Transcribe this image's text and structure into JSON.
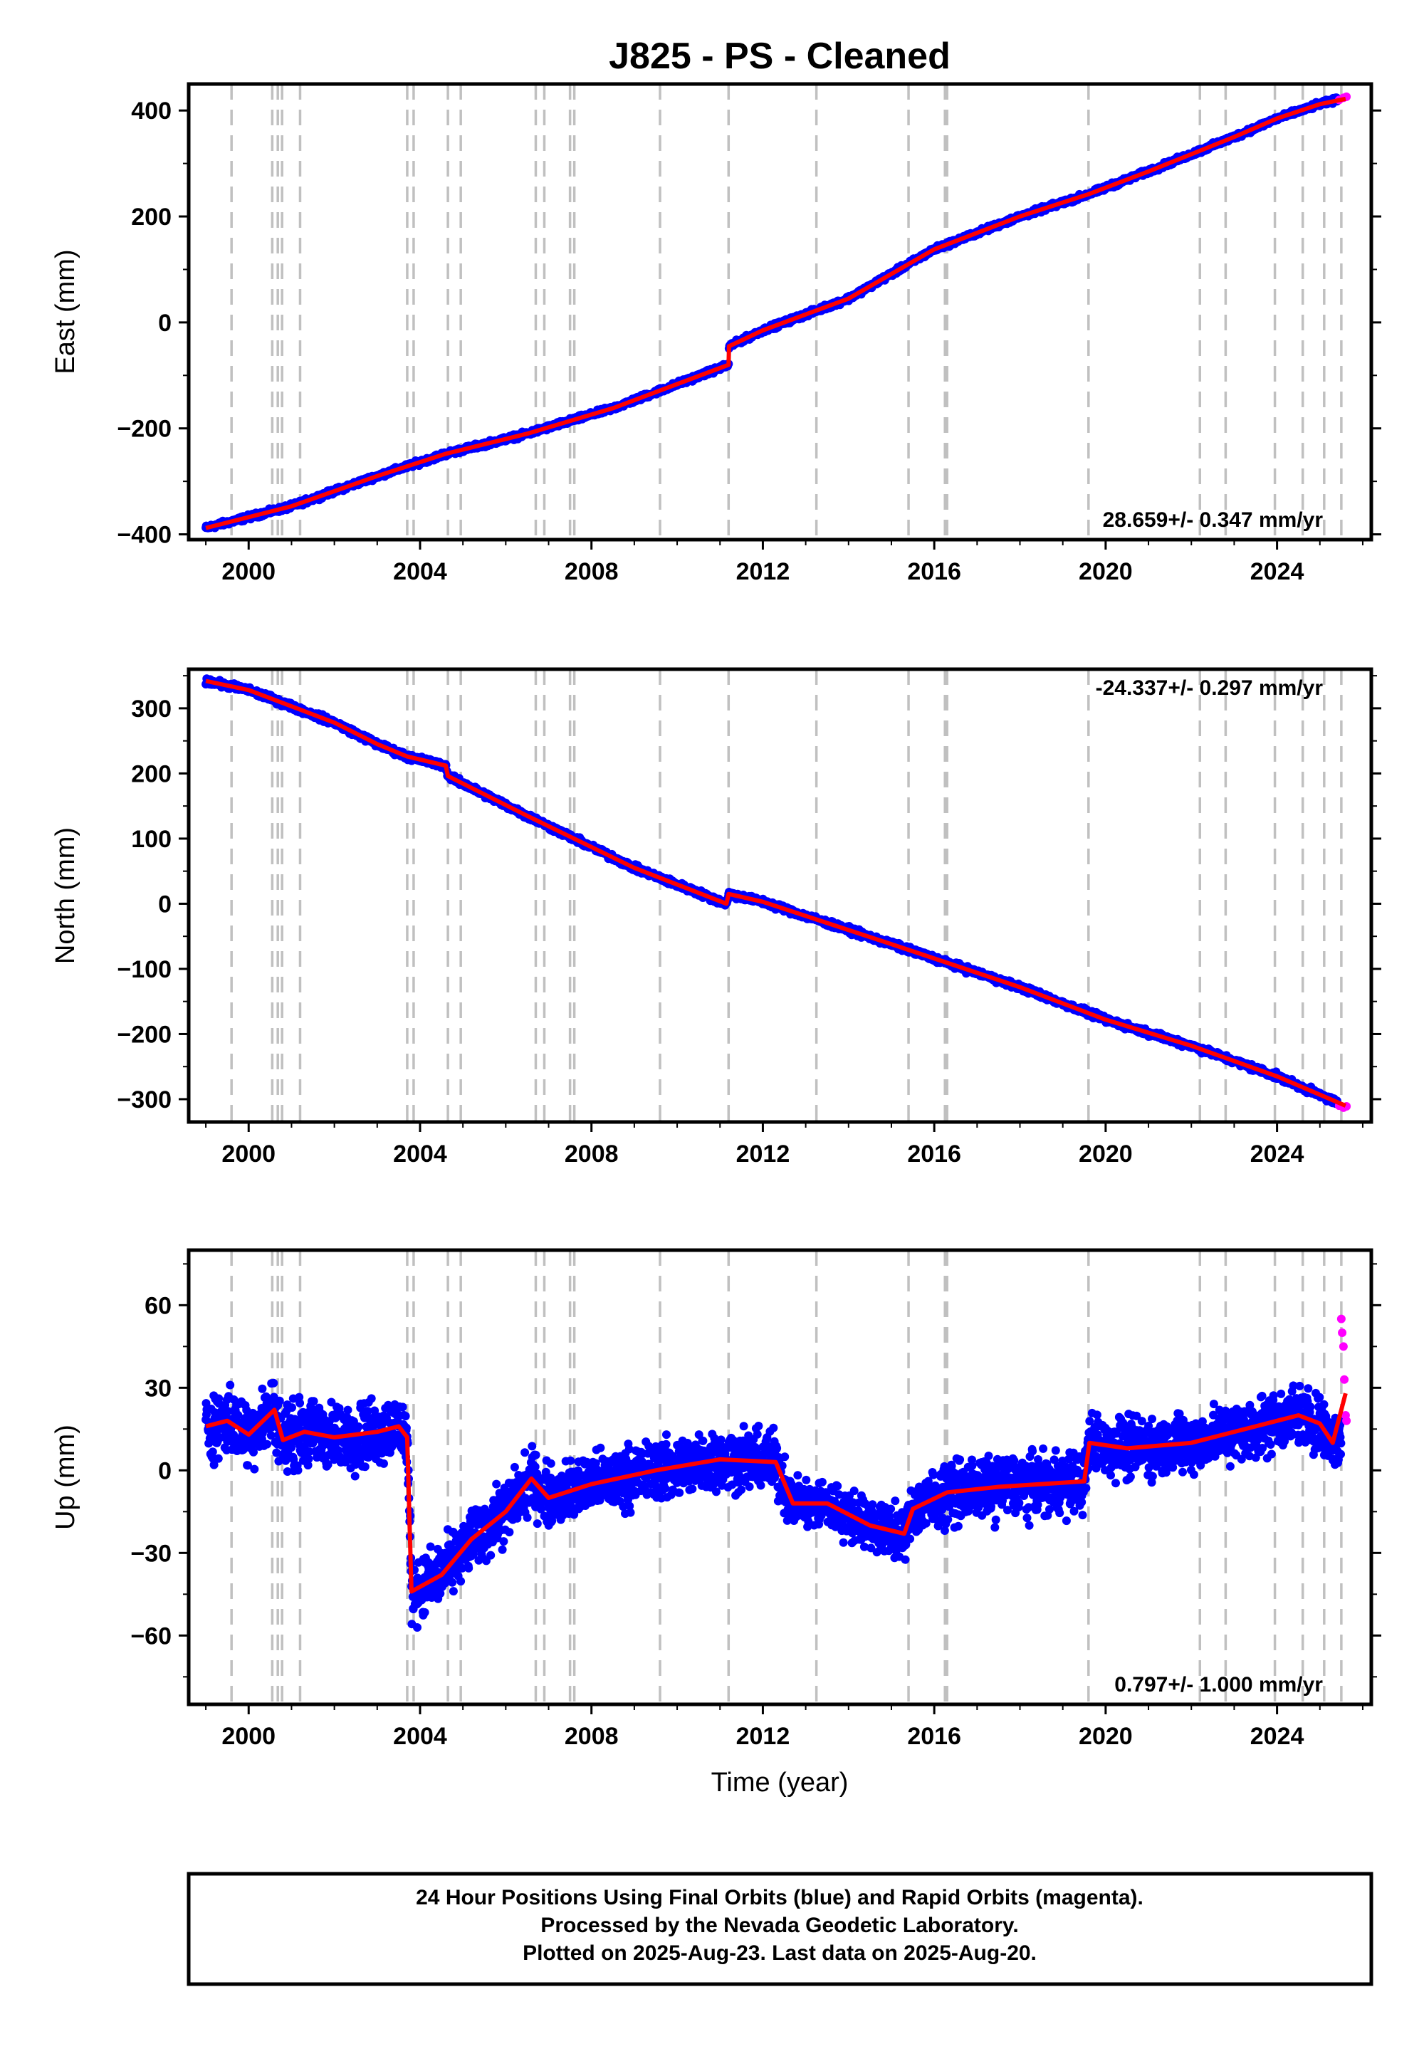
{
  "title": "J825  - PS - Cleaned",
  "colors": {
    "final_orbits": "#0000ff",
    "rapid_orbits": "#ff00ff",
    "trend": "#ff0000",
    "event_lines": "#c0c0c0",
    "frame": "#000000"
  },
  "event_lines_years": [
    1999.6,
    2000.55,
    2000.68,
    2000.78,
    2001.2,
    2003.7,
    2003.85,
    2004.65,
    2004.95,
    2006.7,
    2006.9,
    2007.5,
    2007.6,
    2009.6,
    2011.2,
    2013.25,
    2015.4,
    2016.25,
    2016.3,
    2019.6,
    2022.2,
    2022.8,
    2023.95,
    2024.6,
    2025.1,
    2025.5
  ],
  "xaxis": {
    "label": "Time (year)",
    "range": [
      1998.6,
      2026.2
    ],
    "ticks": [
      2000,
      2004,
      2008,
      2012,
      2016,
      2020,
      2024
    ]
  },
  "footer": {
    "line1": "24 Hour Positions Using Final Orbits (blue) and Rapid Orbits (magenta).",
    "line2": "Processed by the Nevada Geodetic Laboratory.",
    "line3": "Plotted on 2025-Aug-23. Last data on 2025-Aug-20."
  },
  "chart_data": [
    {
      "type": "scatter",
      "panel": "east",
      "ylabel": "East (mm)",
      "ylim": [
        -410,
        450
      ],
      "yticks": [
        -400,
        -200,
        0,
        200,
        400
      ],
      "rate_label": "28.659+/- 0.347 mm/yr",
      "rate_position": "bottom-right",
      "trend_x": [
        1999.0,
        2001.0,
        2003.0,
        2004.6,
        2006.5,
        2008.5,
        2011.2,
        2011.21,
        2012.0,
        2014.0,
        2016.0,
        2018.0,
        2019.6,
        2021.0,
        2023.0,
        2024.0,
        2025.0,
        2025.6
      ],
      "trend_y": [
        -388,
        -347,
        -290,
        -248,
        -210,
        -162,
        -80,
        -45,
        -15,
        45,
        138,
        200,
        242,
        285,
        350,
        385,
        412,
        422
      ],
      "series": [
        {
          "name": "Final Orbits",
          "x": [
            1999.0,
            2001.0,
            2003.0,
            2004.6,
            2006.5,
            2008.5,
            2011.2,
            2011.21,
            2012.0,
            2014.0,
            2016.0,
            2018.0,
            2019.6,
            2021.0,
            2023.0,
            2024.0,
            2025.0,
            2025.4
          ],
          "y": [
            -388,
            -347,
            -290,
            -248,
            -210,
            -162,
            -80,
            -45,
            -15,
            45,
            138,
            200,
            242,
            285,
            350,
            385,
            412,
            420
          ],
          "noise": 4
        },
        {
          "name": "Rapid Orbits",
          "x": [
            2025.45,
            2025.55,
            2025.62
          ],
          "y": [
            420,
            424,
            426
          ],
          "noise": 0
        }
      ]
    },
    {
      "type": "scatter",
      "panel": "north",
      "ylabel": "North (mm)",
      "ylim": [
        -335,
        360
      ],
      "yticks": [
        -300,
        -200,
        -100,
        0,
        100,
        200,
        300
      ],
      "rate_label": "-24.337+/- 0.297 mm/yr",
      "rate_position": "top-right",
      "trend_x": [
        1999.0,
        2000.0,
        2002.0,
        2003.0,
        2003.7,
        2004.6,
        2004.65,
        2006.5,
        2009.0,
        2011.15,
        2011.2,
        2012.0,
        2015.0,
        2018.0,
        2020.0,
        2022.0,
        2024.0,
        2025.6
      ],
      "trend_y": [
        342,
        328,
        278,
        245,
        226,
        212,
        196,
        135,
        55,
        0,
        15,
        3,
        -62,
        -128,
        -178,
        -218,
        -265,
        -310
      ],
      "series": [
        {
          "name": "Final Orbits",
          "x": [
            1999.0,
            2000.0,
            2002.0,
            2003.0,
            2003.7,
            2004.6,
            2004.65,
            2006.5,
            2009.0,
            2011.15,
            2011.2,
            2012.0,
            2015.0,
            2018.0,
            2020.0,
            2022.0,
            2024.0,
            2025.4
          ],
          "y": [
            342,
            328,
            278,
            245,
            226,
            212,
            196,
            135,
            55,
            0,
            15,
            3,
            -62,
            -128,
            -178,
            -218,
            -265,
            -305
          ],
          "noise": 4
        },
        {
          "name": "Rapid Orbits",
          "x": [
            2025.45,
            2025.55,
            2025.62
          ],
          "y": [
            -310,
            -313,
            -311
          ],
          "noise": 0
        }
      ]
    },
    {
      "type": "scatter",
      "panel": "up",
      "ylabel": "Up (mm)",
      "ylim": [
        -85,
        80
      ],
      "yticks": [
        -60,
        -30,
        0,
        30,
        60
      ],
      "rate_label": "0.797+/- 1.000 mm/yr",
      "rate_position": "bottom-right",
      "trend_x": [
        1999.0,
        1999.5,
        2000.0,
        2000.6,
        2000.8,
        2001.3,
        2002.0,
        2003.0,
        2003.5,
        2003.7,
        2003.8,
        2004.5,
        2005.2,
        2006.0,
        2006.6,
        2007.0,
        2008.0,
        2009.5,
        2011.0,
        2012.3,
        2012.7,
        2013.5,
        2014.5,
        2015.3,
        2015.5,
        2016.3,
        2017.5,
        2019.5,
        2019.62,
        2020.5,
        2022.0,
        2023.5,
        2024.5,
        2025.0,
        2025.3,
        2025.6
      ],
      "trend_y": [
        16,
        18,
        13,
        22,
        11,
        14,
        12,
        14,
        16,
        12,
        -44,
        -38,
        -25,
        -15,
        -3,
        -10,
        -5,
        0,
        4,
        3,
        -12,
        -12,
        -20,
        -23,
        -14,
        -8,
        -6,
        -4,
        10,
        8,
        10,
        16,
        20,
        17,
        10,
        28
      ],
      "series": [
        {
          "name": "Final Orbits",
          "x": [
            1999.0,
            1999.5,
            2000.0,
            2000.6,
            2000.8,
            2001.3,
            2002.0,
            2003.0,
            2003.5,
            2003.7,
            2003.8,
            2004.5,
            2005.2,
            2006.0,
            2006.6,
            2007.0,
            2008.0,
            2009.5,
            2011.0,
            2012.3,
            2012.7,
            2013.5,
            2014.5,
            2015.3,
            2015.5,
            2016.3,
            2017.5,
            2019.5,
            2019.62,
            2020.5,
            2022.0,
            2023.5,
            2024.5,
            2025.0,
            2025.3,
            2025.5
          ],
          "y": [
            16,
            18,
            13,
            22,
            11,
            14,
            12,
            14,
            16,
            12,
            -44,
            -38,
            -25,
            -15,
            -3,
            -10,
            -5,
            0,
            4,
            3,
            -12,
            -12,
            -20,
            -23,
            -14,
            -8,
            -6,
            -4,
            10,
            8,
            10,
            16,
            20,
            17,
            10,
            12
          ],
          "noise": 9
        },
        {
          "name": "Rapid Orbits",
          "x": [
            2025.5,
            2025.52,
            2025.55,
            2025.57,
            2025.6,
            2025.62
          ],
          "y": [
            55,
            50,
            45,
            33,
            20,
            18
          ],
          "noise": 0
        }
      ]
    }
  ]
}
